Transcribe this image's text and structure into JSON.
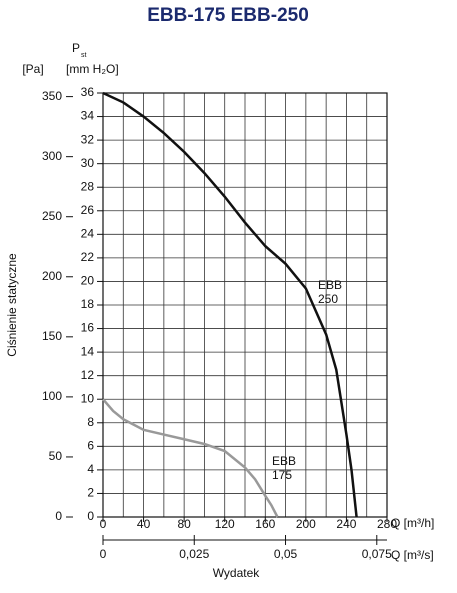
{
  "chart_data": {
    "type": "line",
    "title": "EBB-175  EBB-250",
    "y2_unit": "[Pa]",
    "y_symbol": "P",
    "y_symbol_sub": "st",
    "y_unit": "[mm H₂O]",
    "y_label": "Ciśnienie statyczne",
    "x_label": "Q [m³/h]",
    "x2_label": "Q [m³/s]",
    "x_title": "Wydatek",
    "xlim": [
      0,
      280
    ],
    "xticks": [
      0,
      40,
      80,
      120,
      160,
      200,
      240,
      280
    ],
    "xgridlines": [
      0,
      20,
      40,
      60,
      80,
      100,
      120,
      140,
      160,
      180,
      200,
      220,
      240,
      260,
      280
    ],
    "x2lim": [
      0,
      0.0778
    ],
    "x2ticks": [
      0,
      {
        "value": 0.025,
        "label": "0,025"
      },
      {
        "value": 0.05,
        "label": "0,05"
      },
      {
        "value": 0.075,
        "label": "0,075"
      }
    ],
    "ylim": [
      0,
      36
    ],
    "yticks": [
      0,
      2,
      4,
      6,
      8,
      10,
      12,
      14,
      16,
      18,
      20,
      22,
      24,
      26,
      28,
      30,
      32,
      34,
      36
    ],
    "y2lim": [
      0,
      353
    ],
    "y2ticks": [
      0,
      50,
      100,
      150,
      200,
      250,
      300,
      350
    ],
    "grid": true,
    "series": [
      {
        "name": "EBB 250",
        "label_lines": [
          "EBB",
          "250"
        ],
        "color": "#111111",
        "x": [
          0,
          20,
          40,
          60,
          80,
          100,
          120,
          140,
          160,
          180,
          200,
          220,
          230,
          240,
          245,
          250
        ],
        "values": [
          36,
          35.2,
          34,
          32.6,
          31,
          29.2,
          27.2,
          25,
          23,
          21.5,
          19.4,
          15.5,
          12.5,
          7,
          4,
          0
        ]
      },
      {
        "name": "EBB 175",
        "label_lines": [
          "EBB",
          "175"
        ],
        "color": "#999999",
        "x": [
          0,
          10,
          20,
          40,
          60,
          80,
          100,
          120,
          140,
          150,
          160,
          166,
          172
        ],
        "values": [
          10,
          9,
          8.3,
          7.4,
          7,
          6.6,
          6.2,
          5.6,
          4.2,
          3.2,
          1.8,
          1,
          0
        ]
      }
    ]
  }
}
